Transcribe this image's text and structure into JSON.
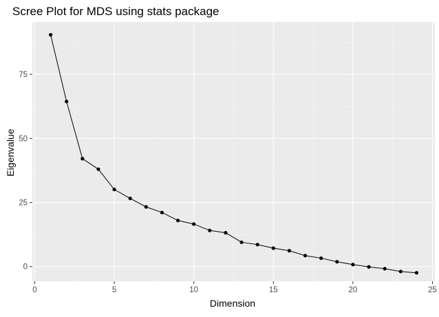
{
  "chart_data": {
    "type": "line",
    "title": "Scree Plot for MDS using stats package",
    "xlabel": "Dimension",
    "ylabel": "Eigenvalue",
    "xlim": [
      -0.15,
      25.15
    ],
    "ylim": [
      -5.7,
      95.4
    ],
    "xticks": [
      0,
      5,
      10,
      15,
      20,
      25
    ],
    "yticks": [
      0,
      25,
      50,
      75
    ],
    "grid": true,
    "legend": "none",
    "colors": {
      "panel_background": "#ebebeb",
      "grid_major": "#ffffff",
      "grid_minor": "#f5f5f5",
      "line": "#000000",
      "point": "#000000"
    },
    "series": [
      {
        "x": [
          1,
          2,
          3,
          4,
          5,
          6,
          7,
          8,
          9,
          10,
          11,
          12,
          13,
          14,
          15,
          16,
          17,
          18,
          19,
          20,
          21,
          22,
          23,
          24
        ],
        "values": [
          90.4,
          64.4,
          42.1,
          38.0,
          30.1,
          26.6,
          23.3,
          21.1,
          18.0,
          16.6,
          14.1,
          13.2,
          9.5,
          8.6,
          7.2,
          6.2,
          4.3,
          3.3,
          1.9,
          0.8,
          -0.1,
          -0.8,
          -1.9,
          -2.4
        ]
      }
    ]
  }
}
